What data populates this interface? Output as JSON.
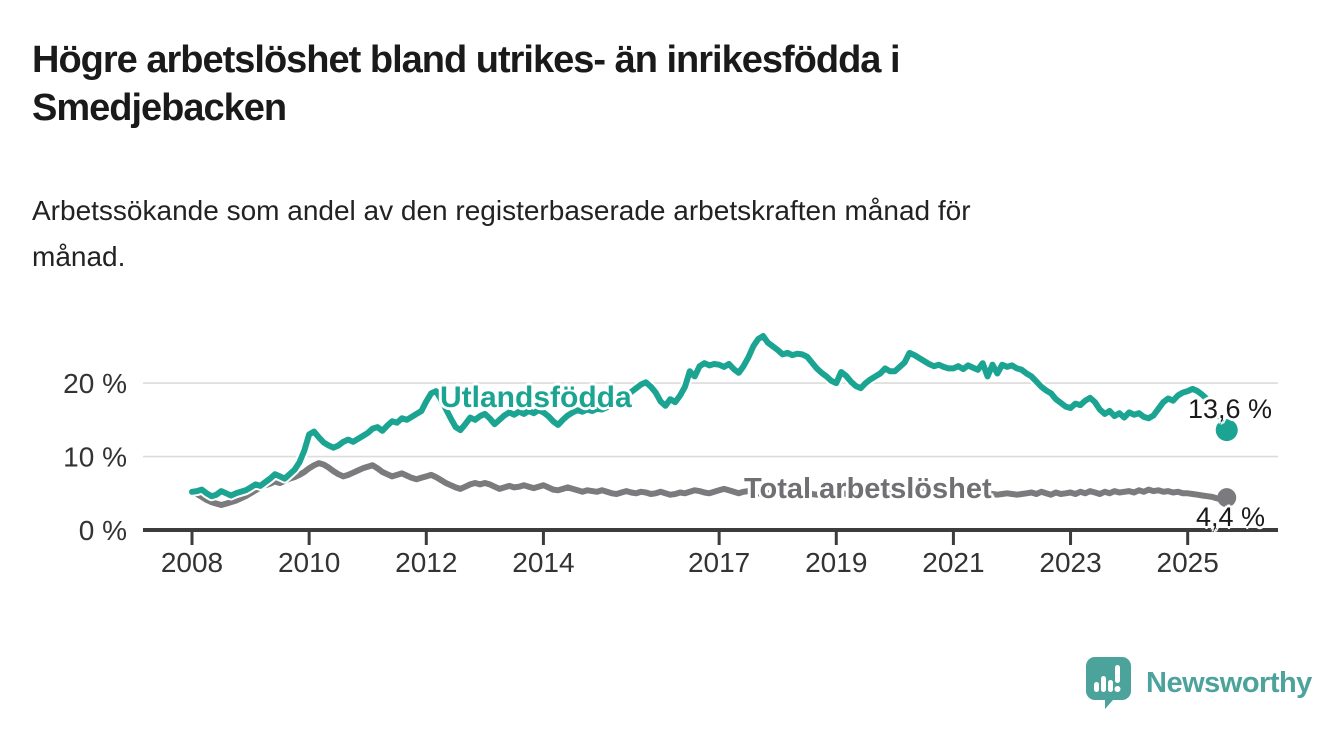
{
  "title": {
    "lines": [
      "Högre arbetslöshet bland utrikes- än inrikesfödda i",
      "Smedjebacken"
    ]
  },
  "subtitle": {
    "lines": [
      "Arbetssökande som andel av den registerbaserade arbetskraften månad för",
      "månad."
    ]
  },
  "branding": {
    "logo_text": "Newsworthy",
    "logo_icon": "bar-chart-speech-bubble",
    "color": "#4BA39C"
  },
  "colors": {
    "utlandsfodda_line": "#1CA492",
    "total_line": "#7B7B7E",
    "axis": "#3C3C3C",
    "gridline": "#DCDCDC",
    "tick_text": "#333333"
  },
  "chart_data": {
    "type": "line",
    "title": "Högre arbetslöshet bland utrikes- än inrikesfödda i Smedjebacken",
    "subtitle": "Arbetssökande som andel av den registerbaserade arbetskraften månad för månad.",
    "unit": "%",
    "x_start": "2008-01",
    "x_end": "2025-09",
    "x_frequency": "monthly",
    "x_tick_labels": [
      "2008",
      "2010",
      "2012",
      "2014",
      "2017",
      "2019",
      "2021",
      "2023",
      "2025"
    ],
    "x_tick_years": [
      2008,
      2010,
      2012,
      2014,
      2017,
      2019,
      2021,
      2023,
      2025
    ],
    "y_ticks": [
      {
        "label": "0 %",
        "value": 0
      },
      {
        "label": "10 %",
        "value": 10
      },
      {
        "label": "20 %",
        "value": 20
      }
    ],
    "y_gridlines": [
      10,
      20
    ],
    "ylim": [
      0,
      27
    ],
    "grid": true,
    "legend_position": "inline-labels",
    "series": [
      {
        "name": "Utlandsfödda",
        "color": "#1CA492",
        "end_label": "13,6 %",
        "end_value": 13.6,
        "values": [
          5.2,
          5.3,
          5.5,
          5.0,
          4.6,
          4.8,
          5.3,
          5.0,
          4.7,
          5.0,
          5.2,
          5.4,
          5.8,
          6.2,
          6.0,
          6.5,
          7.0,
          7.6,
          7.3,
          7.0,
          7.6,
          8.2,
          9.2,
          10.8,
          13.0,
          13.4,
          12.6,
          11.9,
          11.5,
          11.2,
          11.5,
          12.0,
          12.3,
          12.0,
          12.4,
          12.8,
          13.2,
          13.8,
          14.0,
          13.5,
          14.2,
          14.8,
          14.6,
          15.2,
          15.0,
          15.4,
          15.8,
          16.2,
          17.5,
          18.6,
          18.9,
          17.8,
          16.5,
          15.2,
          14.0,
          13.6,
          14.4,
          15.3,
          15.0,
          15.5,
          15.8,
          15.2,
          14.4,
          15.0,
          15.6,
          16.0,
          15.7,
          16.1,
          15.8,
          16.2,
          15.9,
          16.3,
          16.0,
          15.5,
          14.8,
          14.3,
          15.0,
          15.6,
          16.0,
          16.3,
          16.1,
          16.4,
          16.2,
          16.5,
          16.4,
          16.7,
          17.0,
          17.4,
          17.8,
          18.3,
          18.8,
          19.3,
          19.8,
          20.1,
          19.5,
          18.7,
          17.5,
          16.9,
          17.8,
          17.4,
          18.3,
          19.5,
          21.6,
          20.9,
          22.3,
          22.7,
          22.4,
          22.6,
          22.5,
          22.2,
          22.6,
          21.9,
          21.4,
          22.3,
          23.5,
          25.0,
          26.0,
          26.4,
          25.5,
          25.0,
          24.5,
          23.9,
          24.1,
          23.8,
          24.0,
          23.9,
          23.6,
          22.8,
          22.0,
          21.4,
          20.9,
          20.3,
          20.0,
          21.5,
          21.0,
          20.2,
          19.6,
          19.3,
          20.0,
          20.5,
          20.9,
          21.3,
          22.0,
          21.6,
          21.6,
          22.2,
          22.8,
          24.1,
          23.8,
          23.4,
          23.0,
          22.6,
          22.3,
          22.5,
          22.2,
          22.0,
          22.0,
          22.3,
          21.9,
          22.4,
          22.1,
          21.8,
          22.7,
          20.9,
          22.5,
          21.3,
          22.5,
          22.2,
          22.4,
          22.0,
          21.8,
          21.3,
          20.9,
          20.2,
          19.5,
          19.0,
          18.6,
          17.8,
          17.3,
          16.8,
          16.6,
          17.2,
          17.0,
          17.6,
          18.0,
          17.4,
          16.4,
          15.8,
          16.2,
          15.5,
          15.9,
          15.3,
          16.0,
          15.7,
          15.9,
          15.4,
          15.2,
          15.6,
          16.5,
          17.4,
          17.9,
          17.6,
          18.3,
          18.7,
          18.9,
          19.2,
          18.9,
          18.4,
          17.8,
          16.9,
          15.8,
          14.6,
          13.6
        ]
      },
      {
        "name": "Total arbetslöshet",
        "color": "#7B7B7E",
        "end_label": "4,4 %",
        "end_value": 4.4,
        "values": [
          5.2,
          4.9,
          4.5,
          4.1,
          3.8,
          3.6,
          3.4,
          3.6,
          3.8,
          4.0,
          4.3,
          4.6,
          5.0,
          5.4,
          5.8,
          6.1,
          6.3,
          6.6,
          6.4,
          6.7,
          7.0,
          7.2,
          7.5,
          7.9,
          8.4,
          8.8,
          9.1,
          8.9,
          8.5,
          8.0,
          7.6,
          7.3,
          7.5,
          7.8,
          8.1,
          8.4,
          8.6,
          8.8,
          8.4,
          7.9,
          7.6,
          7.3,
          7.5,
          7.7,
          7.4,
          7.1,
          6.9,
          7.1,
          7.3,
          7.5,
          7.2,
          6.8,
          6.4,
          6.1,
          5.8,
          5.6,
          5.9,
          6.2,
          6.4,
          6.2,
          6.4,
          6.2,
          5.9,
          5.6,
          5.8,
          6.0,
          5.8,
          5.9,
          6.1,
          5.9,
          5.7,
          5.9,
          6.1,
          5.8,
          5.5,
          5.4,
          5.6,
          5.8,
          5.6,
          5.4,
          5.2,
          5.4,
          5.3,
          5.2,
          5.4,
          5.2,
          5.0,
          4.9,
          5.1,
          5.3,
          5.1,
          5.0,
          5.2,
          5.1,
          4.9,
          5.0,
          5.2,
          5.0,
          4.8,
          4.9,
          5.1,
          5.0,
          5.2,
          5.4,
          5.3,
          5.1,
          5.0,
          5.2,
          5.4,
          5.6,
          5.4,
          5.2,
          5.0,
          5.2,
          5.3,
          5.1,
          5.0,
          4.9,
          5.0,
          5.1,
          5.0,
          5.2,
          5.1,
          4.9,
          4.8,
          5.0,
          5.1,
          4.9,
          4.8,
          4.9,
          5.0,
          5.1,
          5.2,
          5.1,
          4.9,
          4.8,
          4.9,
          5.0,
          5.1,
          5.0,
          4.9,
          5.0,
          5.1,
          5.2,
          5.3,
          5.4,
          5.6,
          5.8,
          5.9,
          5.8,
          5.7,
          5.6,
          5.5,
          5.4,
          5.3,
          5.4,
          5.5,
          5.4,
          5.3,
          5.2,
          5.1,
          5.0,
          5.1,
          5.0,
          4.9,
          4.8,
          4.9,
          5.0,
          4.9,
          4.8,
          4.9,
          5.0,
          5.1,
          4.9,
          5.2,
          5.0,
          4.8,
          5.1,
          4.9,
          5.0,
          5.1,
          4.9,
          5.2,
          5.0,
          5.3,
          5.1,
          4.9,
          5.2,
          5.0,
          5.3,
          5.1,
          5.2,
          5.3,
          5.1,
          5.4,
          5.2,
          5.5,
          5.3,
          5.4,
          5.2,
          5.3,
          5.1,
          5.2,
          5.0,
          5.0,
          4.9,
          4.8,
          4.7,
          4.6,
          4.5,
          4.3,
          4.2,
          4.4
        ]
      }
    ]
  }
}
